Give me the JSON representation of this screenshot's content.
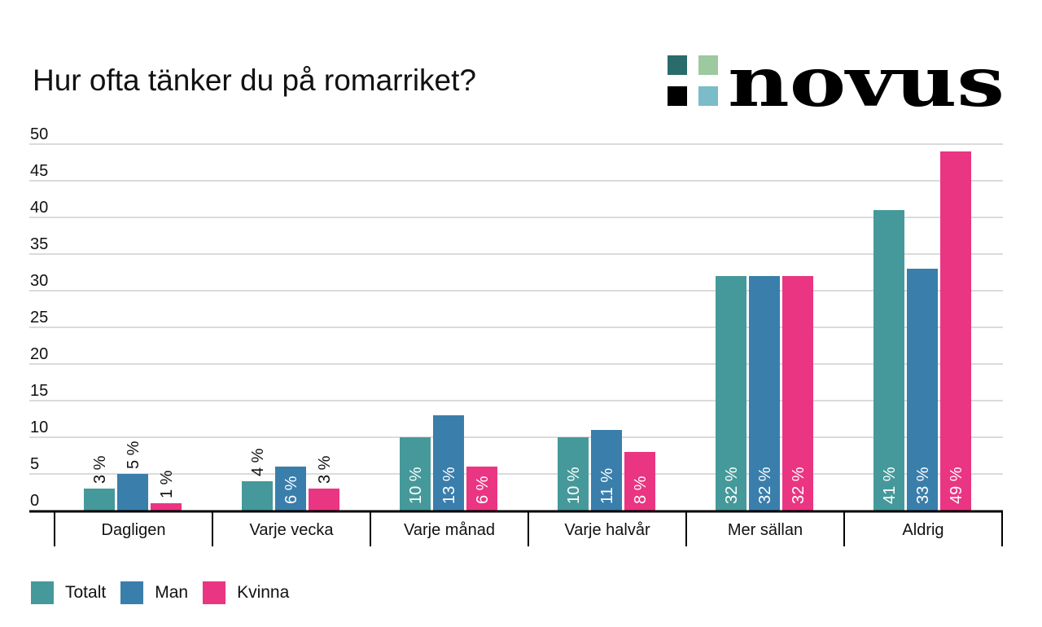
{
  "chart_data": {
    "type": "bar",
    "title": "Hur ofta tänker du på romarriket?",
    "categories": [
      "Dagligen",
      "Varje vecka",
      "Varje månad",
      "Varje halvår",
      "Mer sällan",
      "Aldrig"
    ],
    "series": [
      {
        "name": "Totalt",
        "color": "#45999a",
        "values": [
          3,
          4,
          10,
          10,
          32,
          41
        ]
      },
      {
        "name": "Man",
        "color": "#3a7eab",
        "values": [
          5,
          6,
          13,
          11,
          32,
          33
        ]
      },
      {
        "name": "Kvinna",
        "color": "#ea3582",
        "values": [
          1,
          3,
          6,
          8,
          32,
          49
        ]
      }
    ],
    "value_suffix": " %",
    "ylim": [
      0,
      50
    ],
    "yticks": [
      0,
      5,
      10,
      15,
      20,
      25,
      30,
      35,
      40,
      45,
      50
    ],
    "grid": true,
    "legend_placement": "bottom-left"
  },
  "logo": {
    "text": "novus",
    "colors": [
      "#2a6b6b",
      "#9dc9a0",
      "#000000",
      "#7abcc7"
    ]
  }
}
